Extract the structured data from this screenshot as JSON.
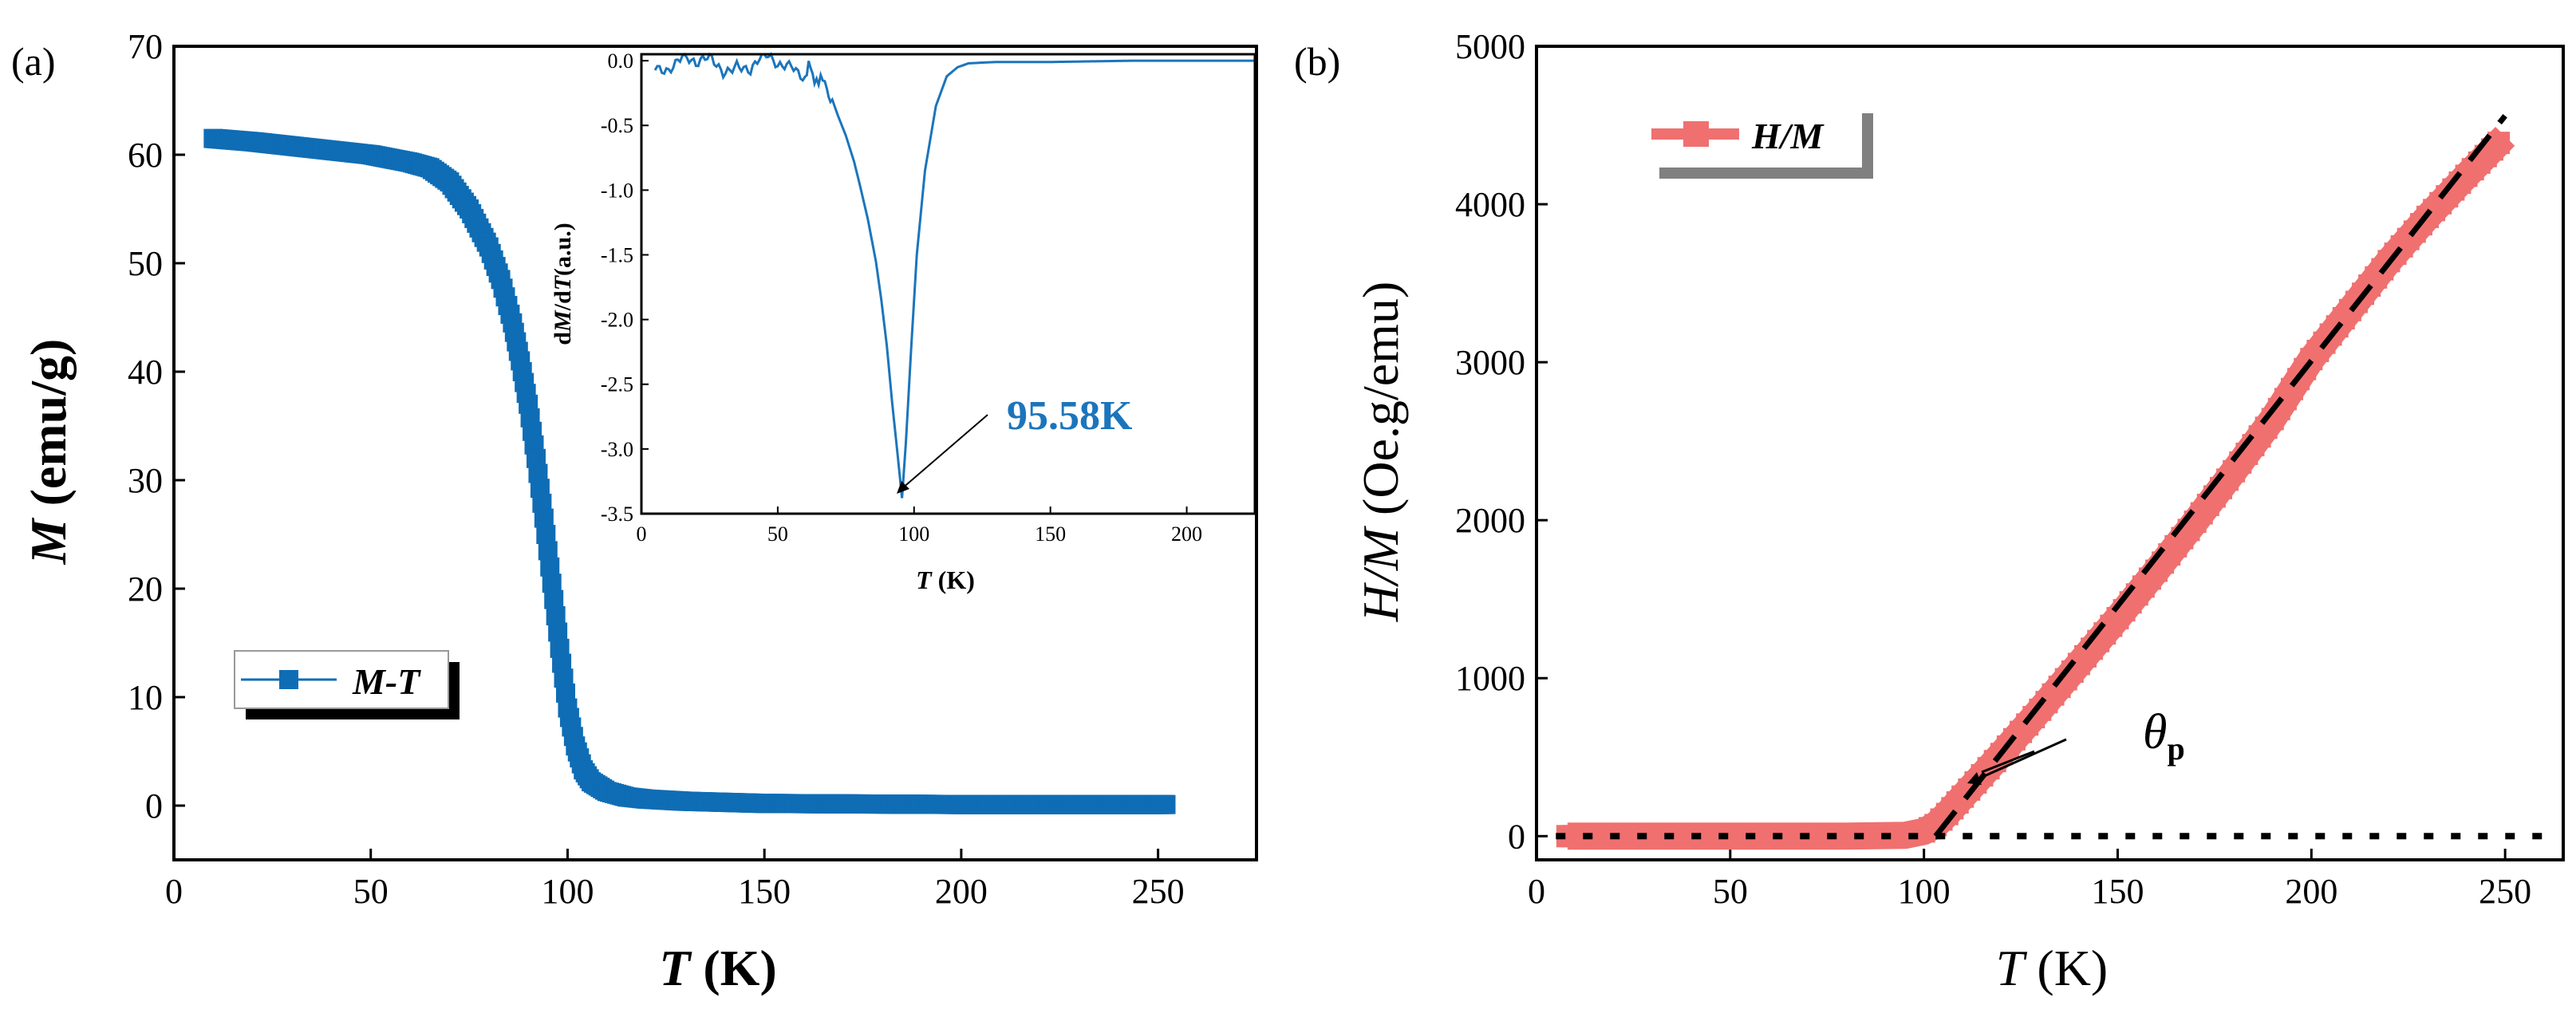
{
  "chart_data": [
    {
      "id": "panel-a",
      "panel_label": "(a)",
      "type": "scatter",
      "xlabel": "T (K)",
      "xlabel_italic": "T",
      "xlabel_unit": " (K)",
      "ylabel": "M (emu/g)",
      "ylabel_italic": "M",
      "ylabel_unit": " (emu/g)",
      "xlim": [
        0,
        275
      ],
      "ylim": [
        -5,
        70
      ],
      "xticks": [
        0,
        50,
        100,
        150,
        200,
        250
      ],
      "yticks": [
        0,
        10,
        20,
        30,
        40,
        50,
        60,
        70
      ],
      "legend": {
        "label": "M-T",
        "position": "bottom-left"
      },
      "color": "#0f6db5",
      "series": [
        {
          "name": "M-T",
          "x": [
            10,
            20,
            30,
            40,
            50,
            60,
            65,
            70,
            75,
            80,
            83,
            86,
            88,
            90,
            92,
            94,
            96,
            98,
            100,
            102,
            104,
            106,
            110,
            115,
            120,
            130,
            140,
            150,
            175,
            200,
            225,
            252
          ],
          "y": [
            61.5,
            61.2,
            60.8,
            60.4,
            60.0,
            59.3,
            58.8,
            57.5,
            55.0,
            51.5,
            48.5,
            44.5,
            41.0,
            37.0,
            32.0,
            26.5,
            20.5,
            14.5,
            9.0,
            5.5,
            3.3,
            2.2,
            1.3,
            0.8,
            0.6,
            0.4,
            0.3,
            0.2,
            0.15,
            0.1,
            0.1,
            0.1
          ]
        }
      ],
      "inset": {
        "type": "line",
        "xlabel": "T (K)",
        "xlabel_italic": "T",
        "xlabel_unit": " (K)",
        "ylabel": "dM/dT(a.u.)",
        "ylabel_parts": [
          "d",
          "M",
          "/d",
          "T",
          "(a.u.)"
        ],
        "xlim": [
          0,
          225
        ],
        "ylim": [
          -3.5,
          0.05
        ],
        "xticks": [
          0,
          50,
          100,
          150,
          200
        ],
        "yticks": [
          0.0,
          -0.5,
          -1.0,
          -1.5,
          -2.0,
          -2.5,
          -3.0,
          -3.5
        ],
        "ytick_labels": [
          "0.0",
          "-0.5",
          "-1.0",
          "-1.5",
          "-2.0",
          "-2.5",
          "-3.0",
          "-3.5"
        ],
        "annotation": "95.58K",
        "annotation_x": 95.58,
        "annotation_y": -3.38,
        "series": [
          {
            "name": "dM/dT",
            "x": [
              5,
              10,
              15,
              20,
              25,
              30,
              35,
              40,
              45,
              50,
              55,
              60,
              62,
              65,
              68,
              70,
              72,
              75,
              78,
              80,
              83,
              86,
              88,
              90,
              92,
              94,
              95.58,
              97,
              99,
              101,
              104,
              108,
              112,
              116,
              120,
              130,
              150,
              180,
              200,
              225
            ],
            "y": [
              0.0,
              -0.05,
              0.02,
              -0.08,
              0.03,
              -0.06,
              0.01,
              -0.09,
              0.02,
              -0.07,
              0.0,
              -0.1,
              -0.06,
              -0.15,
              -0.22,
              -0.3,
              -0.42,
              -0.58,
              -0.78,
              -0.95,
              -1.22,
              -1.55,
              -1.85,
              -2.2,
              -2.65,
              -3.05,
              -3.38,
              -2.95,
              -2.2,
              -1.5,
              -0.85,
              -0.35,
              -0.12,
              -0.05,
              -0.02,
              -0.01,
              -0.01,
              0.0,
              0.0,
              0.0
            ]
          }
        ]
      }
    },
    {
      "id": "panel-b",
      "panel_label": "(b)",
      "type": "scatter",
      "xlabel": "T (K)",
      "xlabel_italic": "T",
      "xlabel_unit": " (K)",
      "ylabel": "H/M (Oe.g/emu)",
      "ylabel_italic": "H/M",
      "ylabel_unit": " (Oe.g/emu)",
      "xlim": [
        0,
        265
      ],
      "ylim": [
        -150,
        5000
      ],
      "xticks": [
        0,
        50,
        100,
        150,
        200,
        250
      ],
      "yticks": [
        0,
        1000,
        2000,
        3000,
        4000,
        5000
      ],
      "legend": {
        "label": "H/M",
        "position": "top-left"
      },
      "color": "#f07070",
      "series": [
        {
          "name": "H/M",
          "x": [
            8,
            20,
            40,
            60,
            80,
            95,
            100,
            103,
            106,
            110,
            120,
            130,
            140,
            150,
            160,
            170,
            180,
            190,
            200,
            210,
            220,
            230,
            240,
            250
          ],
          "y": [
            0,
            0,
            0,
            0,
            0,
            5,
            30,
            70,
            140,
            250,
            520,
            800,
            1090,
            1380,
            1680,
            1990,
            2310,
            2640,
            3020,
            3330,
            3640,
            3920,
            4180,
            4430
          ]
        },
        {
          "name": "Curie-Weiss fit",
          "style": "dashed",
          "x": [
            103,
            250
          ],
          "y": [
            0,
            4560
          ]
        },
        {
          "name": "zero baseline",
          "style": "dotted",
          "x": [
            5,
            262
          ],
          "y": [
            0,
            0
          ]
        }
      ],
      "annotation": "θp",
      "annotation_symbol": "θ",
      "annotation_sub": "p",
      "annotation_x": 103,
      "annotation_y": 0
    }
  ]
}
